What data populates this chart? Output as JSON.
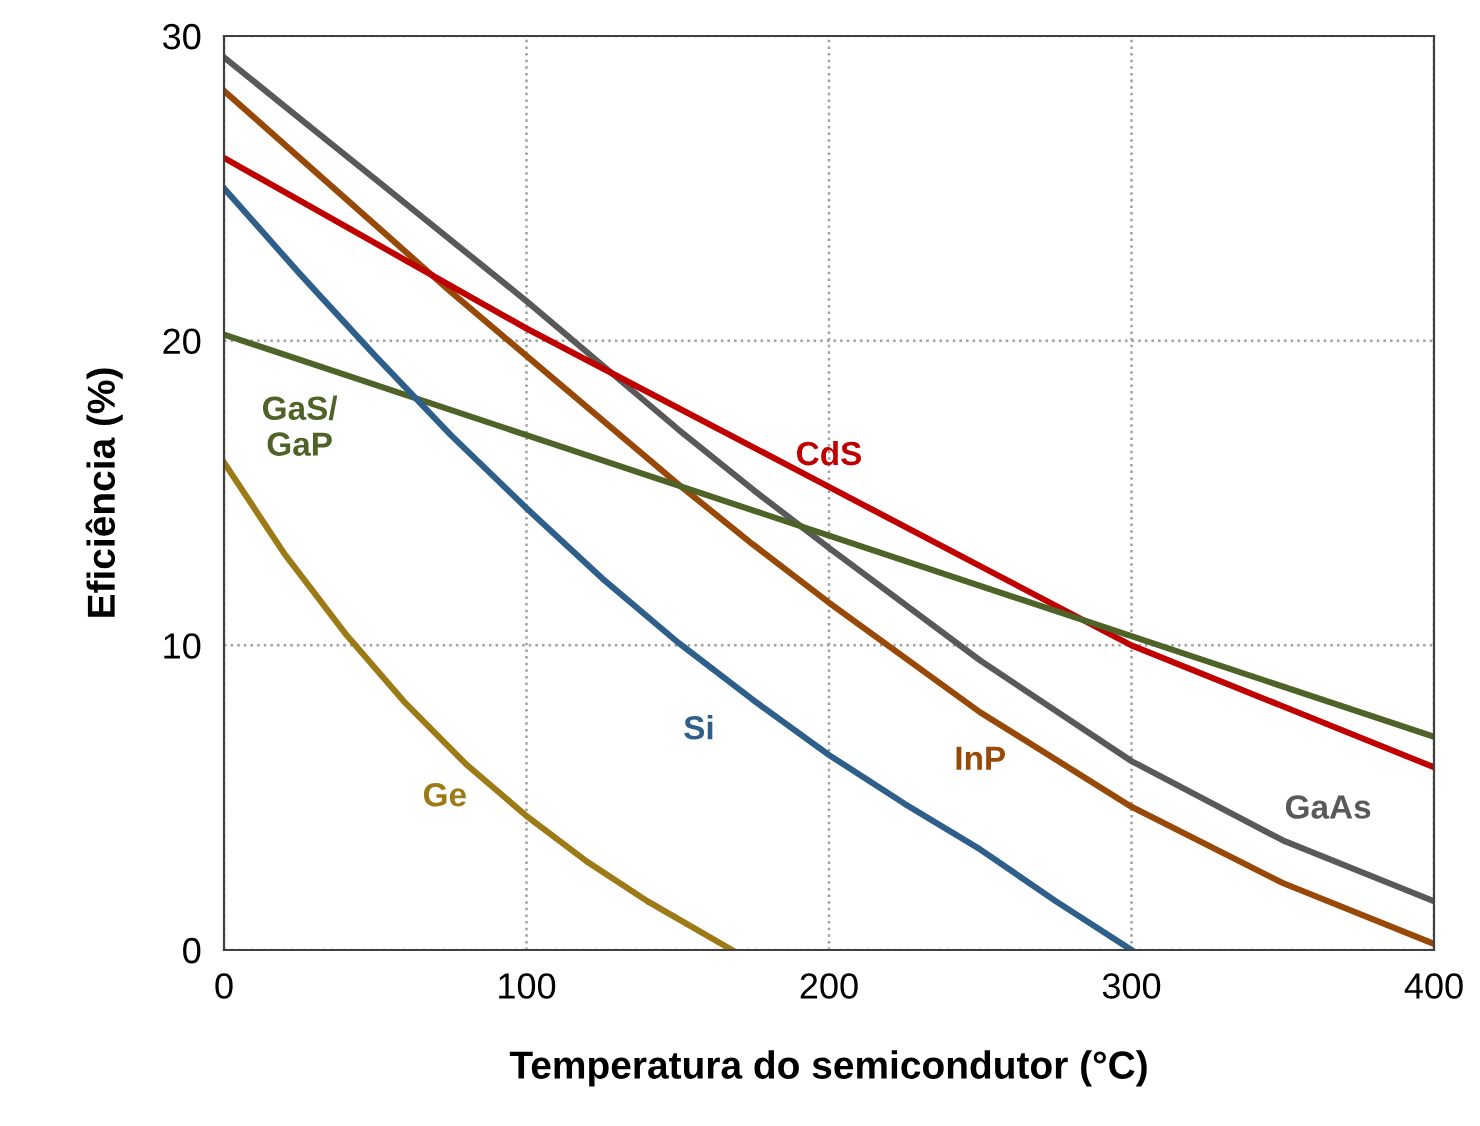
{
  "chart_data": {
    "type": "line",
    "xlabel": "Temperatura do semicondutor (°C)",
    "ylabel": "Eficiência (%)",
    "xlim": [
      0,
      400
    ],
    "ylim": [
      0,
      30
    ],
    "xticks": [
      0,
      100,
      200,
      300,
      400
    ],
    "yticks": [
      0,
      10,
      20,
      30
    ],
    "grid": true,
    "legend": false,
    "marker": "none",
    "line_style": "solid",
    "series": [
      {
        "name": "GaAs",
        "color": "#595959",
        "x": [
          0,
          25,
          50,
          75,
          100,
          125,
          150,
          175,
          200,
          250,
          300,
          350,
          400
        ],
        "values": [
          29.3,
          27.3,
          25.3,
          23.3,
          21.3,
          19.2,
          17.1,
          15.1,
          13.2,
          9.5,
          6.2,
          3.6,
          1.6
        ]
      },
      {
        "name": "InP",
        "color": "#984807",
        "x": [
          0,
          25,
          50,
          75,
          100,
          125,
          150,
          175,
          200,
          250,
          300,
          350,
          400
        ],
        "values": [
          28.2,
          26,
          23.8,
          21.6,
          19.5,
          17.4,
          15.3,
          13.3,
          11.4,
          7.8,
          4.7,
          2.2,
          0.2
        ]
      },
      {
        "name": "CdS",
        "color": "#c00000",
        "x": [
          0,
          50,
          100,
          150,
          200,
          250,
          300,
          350,
          400
        ],
        "values": [
          26,
          23.2,
          20.4,
          17.8,
          15.2,
          12.6,
          10,
          8,
          6
        ]
      },
      {
        "name": "GaS/\nGaP",
        "color": "#4f6228",
        "x": [
          0,
          100,
          200,
          300,
          400
        ],
        "values": [
          20.2,
          16.9,
          13.6,
          10.3,
          7
        ]
      },
      {
        "name": "Si",
        "color": "#2e5f8a",
        "x": [
          0,
          25,
          50,
          75,
          100,
          125,
          150,
          175,
          200,
          225,
          250,
          275,
          300
        ],
        "values": [
          25,
          22.2,
          19.5,
          16.9,
          14.5,
          12.2,
          10.1,
          8.2,
          6.4,
          4.8,
          3.3,
          1.6,
          0
        ]
      },
      {
        "name": "Ge",
        "color": "#9c7a16",
        "x": [
          0,
          20,
          40,
          60,
          80,
          100,
          120,
          140,
          168
        ],
        "values": [
          16,
          13,
          10.4,
          8.1,
          6.1,
          4.4,
          2.9,
          1.6,
          0
        ]
      }
    ]
  }
}
